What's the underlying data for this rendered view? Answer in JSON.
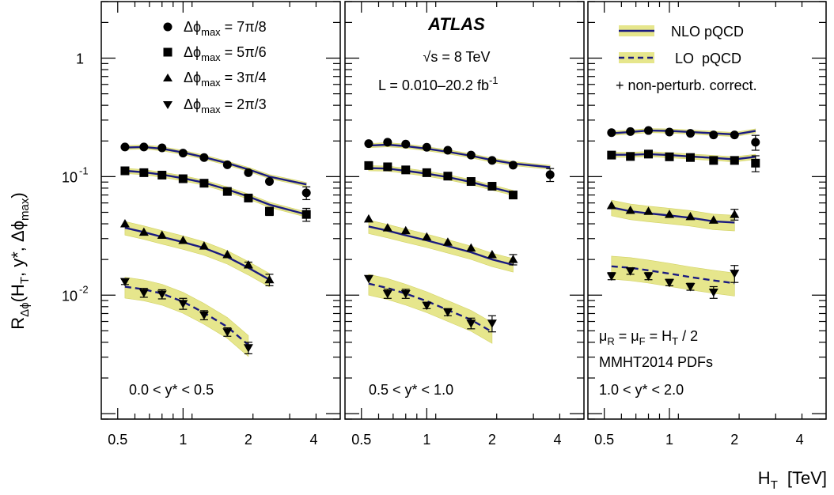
{
  "figure": {
    "experiment": "ATLAS",
    "energy": "√s = 8 TeV",
    "lumi": "L = 0.010–20.2 fb",
    "lumi_exp": "-1",
    "legend_markers": [
      {
        "label": "Δϕ",
        "sub": "max",
        "rest": " = 7π/8",
        "marker": "circle"
      },
      {
        "label": "Δϕ",
        "sub": "max",
        "rest": " = 5π/6",
        "marker": "square"
      },
      {
        "label": "Δϕ",
        "sub": "max",
        "rest": " = 3π/4",
        "marker": "triangle-up"
      },
      {
        "label": "Δϕ",
        "sub": "max",
        "rest": " = 2π/3",
        "marker": "triangle-down"
      }
    ],
    "legend_theory": [
      {
        "label": "NLO pQCD",
        "style": "solid"
      },
      {
        "label": "LO  pQCD",
        "style": "dashed"
      }
    ],
    "legend_note": "+ non-perturb. correct.",
    "scale_note_1": "μ",
    "scale_note_2": "MMHT2014 PDFs",
    "colors": {
      "theory_line": "#1a1a80",
      "band": "#e6e68c",
      "band_edge": "#d2d264",
      "marker": "#000000"
    }
  },
  "chart_data": {
    "type": "scatter",
    "xscale": "log",
    "yscale": "log",
    "xlim": [
      0.42,
      5.3
    ],
    "ylim": [
      0.0009,
      3.0
    ],
    "xlabel": "H",
    "xlabel_sub": "T",
    "xlabel_unit": "[TeV]",
    "ylabel": "R",
    "ylabel_sub": "Δϕ",
    "ylabel_rest": "(H",
    "ylabel_sub2": "T",
    "ylabel_rest2": ", y*, Δϕ",
    "ylabel_sub3": "max",
    "ylabel_rest3": ")",
    "xticks": [
      0.5,
      1,
      2,
      4
    ],
    "xtick_labels": [
      "0.5",
      "1",
      "2",
      "4"
    ],
    "yticks": [
      {
        "v": 1,
        "base": "1",
        "exp": ""
      },
      {
        "v": 0.1,
        "base": "10",
        "exp": "-1"
      },
      {
        "v": 0.01,
        "base": "10",
        "exp": "-2"
      }
    ],
    "panels": [
      {
        "range_label": "0.0 < y* < 0.5",
        "series": [
          {
            "dphi": "7π/8",
            "marker": "circle",
            "x": [
              0.54,
              0.66,
              0.8,
              1.0,
              1.25,
              1.6,
              2.0,
              2.5,
              3.7
            ],
            "y": [
              0.178,
              0.178,
              0.175,
              0.158,
              0.145,
              0.126,
              0.108,
              0.091,
              0.073
            ],
            "err": [
              0.004,
              0.004,
              0.004,
              0.004,
              0.004,
              0.004,
              0.004,
              0.004,
              0.009
            ],
            "theory": {
              "style": "solid",
              "x": [
                0.54,
                0.66,
                0.8,
                1.0,
                1.25,
                1.6,
                2.0,
                2.5,
                3.7
              ],
              "y": [
                0.176,
                0.178,
                0.172,
                0.16,
                0.146,
                0.13,
                0.115,
                0.1,
                0.086
              ],
              "band": 0.04
            }
          },
          {
            "dphi": "5π/6",
            "marker": "square",
            "x": [
              0.54,
              0.66,
              0.8,
              1.0,
              1.25,
              1.6,
              2.0,
              2.5,
              3.7
            ],
            "y": [
              0.112,
              0.108,
              0.103,
              0.096,
              0.088,
              0.075,
              0.066,
              0.051,
              0.048
            ],
            "err": [
              0.003,
              0.003,
              0.003,
              0.003,
              0.003,
              0.003,
              0.003,
              0.004,
              0.006
            ],
            "theory": {
              "style": "solid",
              "x": [
                0.54,
                0.66,
                0.8,
                1.0,
                1.25,
                1.6,
                2.0,
                2.5,
                3.7
              ],
              "y": [
                0.112,
                0.109,
                0.104,
                0.097,
                0.089,
                0.078,
                0.068,
                0.058,
                0.048
              ],
              "band": 0.05
            }
          },
          {
            "dphi": "3π/4",
            "marker": "triangle-up",
            "x": [
              0.54,
              0.66,
              0.8,
              1.0,
              1.25,
              1.6,
              2.0,
              2.5
            ],
            "y": [
              0.04,
              0.034,
              0.032,
              0.029,
              0.026,
              0.022,
              0.018,
              0.0135
            ],
            "err": [
              0.001,
              0.001,
              0.001,
              0.001,
              0.001,
              0.001,
              0.001,
              0.0015
            ],
            "theory": {
              "style": "solid",
              "x": [
                0.54,
                0.66,
                0.8,
                1.0,
                1.25,
                1.6,
                2.0,
                2.5
              ],
              "y": [
                0.037,
                0.034,
                0.031,
                0.028,
                0.025,
                0.021,
                0.017,
                0.0135
              ],
              "band": 0.13
            }
          },
          {
            "dphi": "2π/3",
            "marker": "triangle-down",
            "x": [
              0.54,
              0.66,
              0.8,
              1.0,
              1.25,
              1.6,
              2.0
            ],
            "y": [
              0.013,
              0.0105,
              0.0102,
              0.0085,
              0.0068,
              0.0049,
              0.0036
            ],
            "err": [
              0.0007,
              0.0009,
              0.0009,
              0.0009,
              0.0006,
              0.0004,
              0.0004
            ],
            "theory": {
              "style": "dashed",
              "x": [
                0.54,
                0.66,
                0.8,
                1.0,
                1.25,
                1.6,
                2.0
              ],
              "y": [
                0.0118,
                0.0112,
                0.0103,
                0.0088,
                0.0071,
                0.0054,
                0.0038
              ],
              "band": 0.2
            }
          }
        ]
      },
      {
        "range_label": "0.5 < y* < 1.0",
        "series": [
          {
            "dphi": "7π/8",
            "marker": "circle",
            "x": [
              0.54,
              0.66,
              0.8,
              1.0,
              1.25,
              1.6,
              2.0,
              2.5,
              3.7
            ],
            "y": [
              0.19,
              0.195,
              0.188,
              0.177,
              0.167,
              0.152,
              0.137,
              0.125,
              0.104
            ],
            "err": [
              0.004,
              0.004,
              0.004,
              0.004,
              0.004,
              0.004,
              0.004,
              0.005,
              0.013
            ],
            "theory": {
              "style": "solid",
              "x": [
                0.54,
                0.66,
                0.8,
                1.0,
                1.25,
                1.6,
                2.0,
                2.5,
                3.7
              ],
              "y": [
                0.183,
                0.186,
                0.181,
                0.172,
                0.162,
                0.15,
                0.138,
                0.129,
                0.12
              ],
              "band": 0.04
            }
          },
          {
            "dphi": "5π/6",
            "marker": "square",
            "x": [
              0.54,
              0.66,
              0.8,
              1.0,
              1.25,
              1.6,
              2.0,
              2.5
            ],
            "y": [
              0.124,
              0.121,
              0.114,
              0.108,
              0.101,
              0.091,
              0.083,
              0.07
            ],
            "err": [
              0.003,
              0.003,
              0.003,
              0.003,
              0.003,
              0.003,
              0.003,
              0.004
            ],
            "theory": {
              "style": "solid",
              "x": [
                0.54,
                0.66,
                0.8,
                1.0,
                1.25,
                1.6,
                2.0,
                2.5
              ],
              "y": [
                0.118,
                0.117,
                0.112,
                0.106,
                0.099,
                0.09,
                0.081,
                0.073
              ],
              "band": 0.05
            }
          },
          {
            "dphi": "3π/4",
            "marker": "triangle-up",
            "x": [
              0.54,
              0.66,
              0.8,
              1.0,
              1.25,
              1.6,
              2.0,
              2.5
            ],
            "y": [
              0.044,
              0.037,
              0.035,
              0.031,
              0.028,
              0.025,
              0.022,
              0.02
            ],
            "err": [
              0.001,
              0.001,
              0.001,
              0.001,
              0.001,
              0.001,
              0.001,
              0.002
            ],
            "theory": {
              "style": "solid",
              "x": [
                0.54,
                0.66,
                0.8,
                1.0,
                1.25,
                1.6,
                2.0,
                2.5
              ],
              "y": [
                0.038,
                0.035,
                0.032,
                0.029,
                0.026,
                0.023,
                0.02,
                0.018
              ],
              "band": 0.13
            }
          },
          {
            "dphi": "2π/3",
            "marker": "triangle-down",
            "x": [
              0.54,
              0.66,
              0.8,
              1.0,
              1.25,
              1.6,
              2.0
            ],
            "y": [
              0.0138,
              0.0103,
              0.0103,
              0.0082,
              0.0072,
              0.0058,
              0.0058
            ],
            "err": [
              0.0007,
              0.0009,
              0.0009,
              0.0005,
              0.0005,
              0.0006,
              0.0009
            ],
            "theory": {
              "style": "dashed",
              "x": [
                0.54,
                0.66,
                0.8,
                1.0,
                1.25,
                1.6,
                2.0
              ],
              "y": [
                0.0125,
                0.0115,
                0.0103,
                0.0089,
                0.0075,
                0.0062,
                0.0049
              ],
              "band": 0.2
            }
          }
        ]
      },
      {
        "range_label": "1.0 < y* < 2.0",
        "series": [
          {
            "dphi": "7π/8",
            "marker": "circle",
            "x": [
              0.54,
              0.66,
              0.8,
              1.0,
              1.25,
              1.6,
              2.0,
              2.5
            ],
            "y": [
              0.235,
              0.24,
              0.245,
              0.238,
              0.232,
              0.225,
              0.225,
              0.195
            ],
            "err": [
              0.006,
              0.006,
              0.006,
              0.006,
              0.006,
              0.008,
              0.01,
              0.028
            ],
            "theory": {
              "style": "solid",
              "x": [
                0.54,
                0.66,
                0.8,
                1.0,
                1.25,
                1.6,
                2.0,
                2.5
              ],
              "y": [
                0.232,
                0.238,
                0.245,
                0.243,
                0.238,
                0.232,
                0.227,
                0.243
              ],
              "band": 0.04
            }
          },
          {
            "dphi": "5π/6",
            "marker": "square",
            "x": [
              0.54,
              0.66,
              0.8,
              1.0,
              1.25,
              1.6,
              2.0,
              2.5
            ],
            "y": [
              0.152,
              0.148,
              0.155,
              0.147,
              0.145,
              0.137,
              0.137,
              0.13
            ],
            "err": [
              0.005,
              0.005,
              0.005,
              0.005,
              0.005,
              0.006,
              0.008,
              0.02
            ],
            "theory": {
              "style": "solid",
              "x": [
                0.54,
                0.66,
                0.8,
                1.0,
                1.25,
                1.6,
                2.0,
                2.5
              ],
              "y": [
                0.153,
                0.153,
                0.155,
                0.152,
                0.148,
                0.144,
                0.14,
                0.147
              ],
              "band": 0.05
            }
          },
          {
            "dphi": "3π/4",
            "marker": "triangle-up",
            "x": [
              0.54,
              0.66,
              0.8,
              1.0,
              1.25,
              1.6,
              2.0
            ],
            "y": [
              0.057,
              0.052,
              0.051,
              0.048,
              0.046,
              0.043,
              0.048
            ],
            "err": [
              0.002,
              0.002,
              0.002,
              0.002,
              0.002,
              0.002,
              0.005
            ],
            "theory": {
              "style": "solid",
              "x": [
                0.54,
                0.66,
                0.8,
                1.0,
                1.25,
                1.6,
                2.0
              ],
              "y": [
                0.055,
                0.051,
                0.049,
                0.047,
                0.045,
                0.042,
                0.041
              ],
              "band": 0.15
            }
          },
          {
            "dphi": "2π/3",
            "marker": "triangle-down",
            "x": [
              0.54,
              0.66,
              0.8,
              1.0,
              1.25,
              1.6,
              2.0
            ],
            "y": [
              0.0145,
              0.016,
              0.0145,
              0.0128,
              0.0118,
              0.0106,
              0.0153
            ],
            "err": [
              0.001,
              0.001,
              0.001,
              0.0008,
              0.0008,
              0.0012,
              0.0025
            ],
            "theory": {
              "style": "dashed",
              "x": [
                0.54,
                0.66,
                0.8,
                1.0,
                1.25,
                1.6,
                2.0
              ],
              "y": [
                0.0175,
                0.017,
                0.0162,
                0.0152,
                0.0142,
                0.0133,
                0.0126
              ],
              "band": 0.22
            }
          }
        ]
      }
    ]
  }
}
